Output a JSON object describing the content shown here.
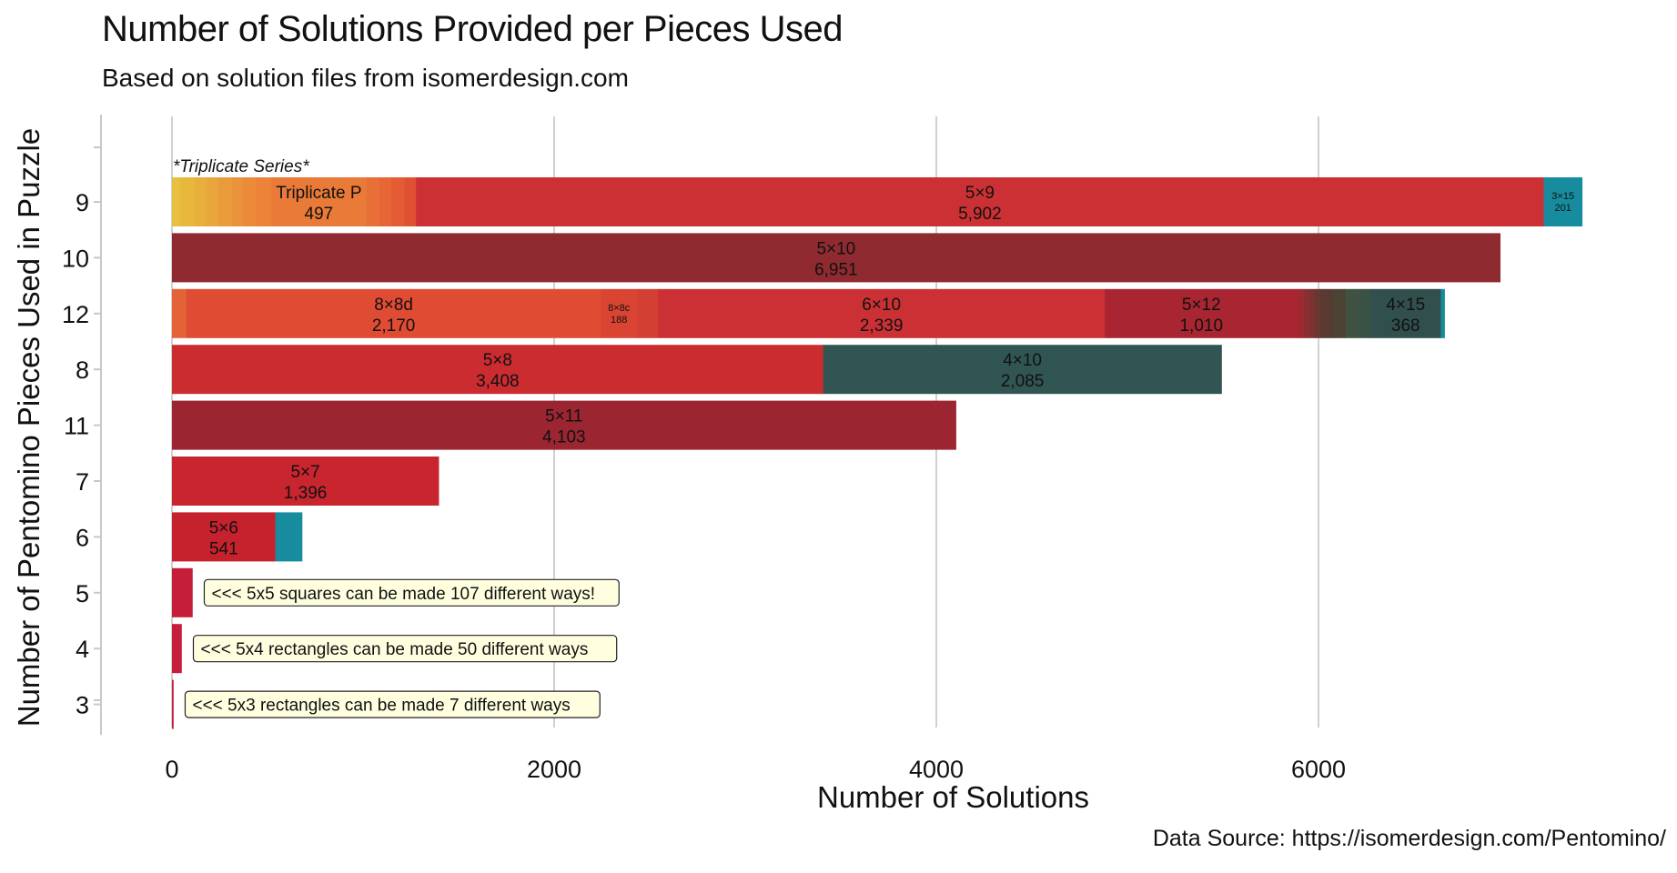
{
  "chart_data": {
    "type": "bar",
    "orientation": "horizontal",
    "stacked": true,
    "title": "Number of Solutions Provided per Pieces Used",
    "subtitle": "Based on solution files from isomerdesign.com",
    "caption": "Data Source: https://isomerdesign.com/Pentomino/",
    "xlabel": "Number of Solutions",
    "ylabel": "Number of Pentomino Pieces Used in Puzzle",
    "xlim": [
      -370,
      7500
    ],
    "xticks": [
      0,
      2000,
      4000,
      6000
    ],
    "xtick_labels": [
      "0",
      "2000",
      "4000",
      "6000"
    ],
    "grid": "vertical major gridlines",
    "categories": [
      "9",
      "10",
      "12",
      "8",
      "11",
      "7",
      "6",
      "5",
      "4",
      "3"
    ],
    "series_annotation": {
      "category": "9",
      "text": "*Triplicate Series*"
    },
    "rows": [
      {
        "category": "9",
        "segments": [
          {
            "value": 40,
            "color": "#E6C03E"
          },
          {
            "value": 80,
            "color": "#E8B83D"
          },
          {
            "value": 60,
            "color": "#E8AF3C"
          },
          {
            "value": 60,
            "color": "#E9A63C"
          },
          {
            "value": 70,
            "color": "#EA9C3B"
          },
          {
            "value": 60,
            "color": "#EB933A"
          },
          {
            "value": 70,
            "color": "#EB8A39"
          },
          {
            "value": 80,
            "color": "#EC8338"
          },
          {
            "label": "Triplicate P",
            "value_label": "497",
            "value": 497,
            "color": "#E97A38"
          },
          {
            "value": 70,
            "color": "#E86F37"
          },
          {
            "value": 60,
            "color": "#E66636"
          },
          {
            "value": 70,
            "color": "#E45B34"
          },
          {
            "value": 60,
            "color": "#E05032"
          },
          {
            "label": "5×9",
            "value_label": "5,902",
            "value": 5902,
            "color": "#CB3134"
          },
          {
            "label": "3×15",
            "value_label": "201",
            "value": 201,
            "color": "#168C9E",
            "small": true
          }
        ]
      },
      {
        "category": "10",
        "segments": [
          {
            "label": "5×10",
            "value_label": "6,951",
            "value": 6951,
            "color": "#8E2A30"
          }
        ]
      },
      {
        "category": "12",
        "segments": [
          {
            "value": 75,
            "color": "#E46238"
          },
          {
            "label": "8×8d",
            "value_label": "2,170",
            "value": 2170,
            "color": "#E04B34"
          },
          {
            "label": "8×8c",
            "value_label": "188",
            "value": 188,
            "color": "#D94532",
            "small": true
          },
          {
            "value": 110,
            "color": "#D43F33"
          },
          {
            "label": "6×10",
            "value_label": "2,339",
            "value": 2339,
            "color": "#CB3134"
          },
          {
            "label": "5×12",
            "value_label": "1,010",
            "value": 1010,
            "color": "#A82531"
          },
          {
            "value": 30,
            "color": "#9E2932"
          },
          {
            "value": 30,
            "color": "#8C2E31"
          },
          {
            "value": 30,
            "color": "#7A3331"
          },
          {
            "value": 30,
            "color": "#673731"
          },
          {
            "value": 30,
            "color": "#5C3A31"
          },
          {
            "value": 40,
            "color": "#553C32"
          },
          {
            "value": 60,
            "color": "#4B4435"
          },
          {
            "value": 70,
            "color": "#405242"
          },
          {
            "value": 60,
            "color": "#3A5246"
          },
          {
            "label": "4×15",
            "value_label": "368",
            "value": 368,
            "color": "#314F4C"
          },
          {
            "value": 20,
            "color": "#168C9E"
          }
        ]
      },
      {
        "category": "8",
        "segments": [
          {
            "label": "5×8",
            "value_label": "3,408",
            "value": 3408,
            "color": "#CB2C30"
          },
          {
            "label": "4×10",
            "value_label": "2,085",
            "value": 2085,
            "color": "#315553"
          }
        ]
      },
      {
        "category": "11",
        "segments": [
          {
            "label": "5×11",
            "value_label": "4,103",
            "value": 4103,
            "color": "#9B2531"
          }
        ]
      },
      {
        "category": "7",
        "segments": [
          {
            "label": "5×7",
            "value_label": "1,396",
            "value": 1396,
            "color": "#C8252F"
          }
        ]
      },
      {
        "category": "6",
        "segments": [
          {
            "label": "5×6",
            "value_label": "541",
            "value": 541,
            "color": "#C6222D"
          },
          {
            "value": 140,
            "color": "#168C9E"
          }
        ]
      },
      {
        "category": "5",
        "segments": [
          {
            "value": 107,
            "color": "#C41E3A"
          }
        ],
        "note": "<<< 5x5 squares can be made 107 different ways!"
      },
      {
        "category": "4",
        "segments": [
          {
            "value": 50,
            "color": "#C41E3A"
          }
        ],
        "note": "<<< 5x4 rectangles can be made 50 different ways"
      },
      {
        "category": "3",
        "segments": [
          {
            "value": 7,
            "color": "#C41E3A"
          }
        ],
        "note": "<<< 5x3 rectangles can be made 7 different ways"
      }
    ]
  }
}
